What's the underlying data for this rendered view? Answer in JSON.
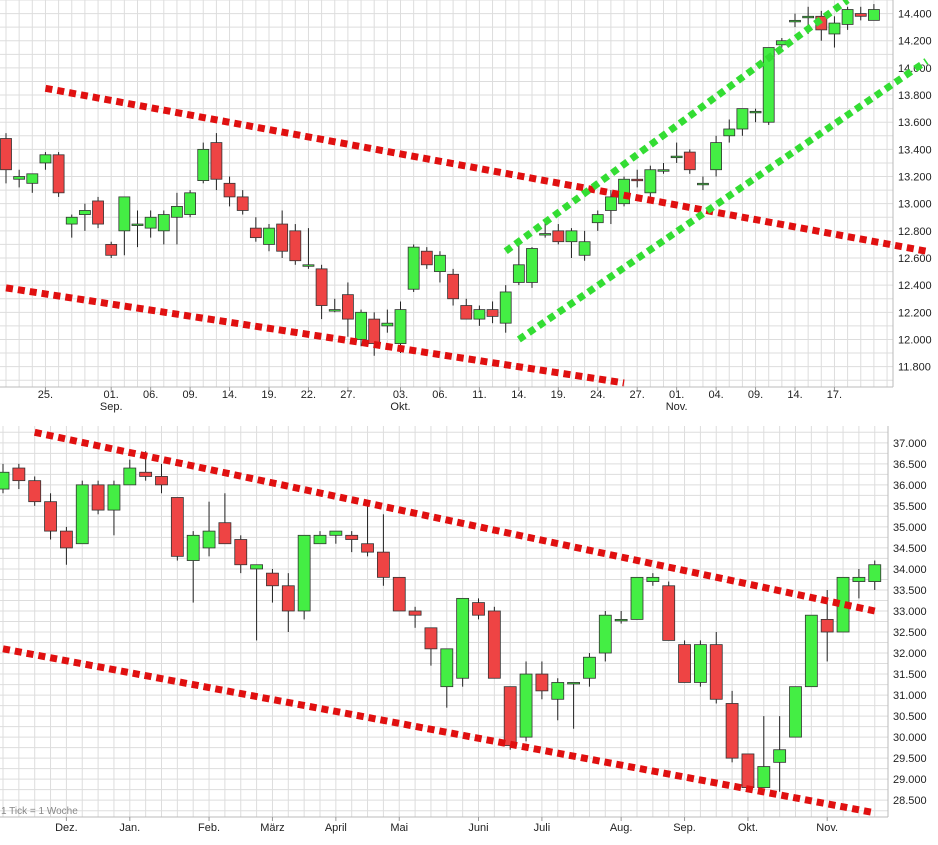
{
  "footer": {
    "tick_note": "1 Tick = 1 Woche"
  },
  "colors": {
    "up": "#44ee44",
    "down": "#ee4444",
    "grid": "#dddddd",
    "trend_red": "#e01010",
    "trend_green": "#33dd33"
  },
  "chart_data": [
    {
      "type": "candlestick",
      "period": "daily",
      "grid": true,
      "ylim": [
        11.65,
        14.5
      ],
      "y_ticks": [
        "11.800",
        "12.000",
        "12.200",
        "12.400",
        "12.600",
        "12.800",
        "13.000",
        "13.200",
        "13.400",
        "13.600",
        "13.800",
        "14.000",
        "14.200",
        "14.400"
      ],
      "x_labels": [
        {
          "day": "25.",
          "index": 3
        },
        {
          "day": "01.",
          "month": "Sep.",
          "index": 8
        },
        {
          "day": "06.",
          "index": 11
        },
        {
          "day": "09.",
          "index": 14
        },
        {
          "day": "14.",
          "index": 17
        },
        {
          "day": "19.",
          "index": 20
        },
        {
          "day": "22.",
          "index": 23
        },
        {
          "day": "27.",
          "index": 26
        },
        {
          "day": "03.",
          "month": "Okt.",
          "index": 30
        },
        {
          "day": "06.",
          "index": 33
        },
        {
          "day": "11.",
          "index": 36
        },
        {
          "day": "14.",
          "index": 39
        },
        {
          "day": "19.",
          "index": 42
        },
        {
          "day": "24.",
          "index": 45
        },
        {
          "day": "27.",
          "index": 48
        },
        {
          "day": "01.",
          "month": "Nov.",
          "index": 51
        },
        {
          "day": "04.",
          "index": 54
        },
        {
          "day": "09.",
          "index": 57
        },
        {
          "day": "14.",
          "index": 60
        },
        {
          "day": "17.",
          "index": 63
        }
      ],
      "candles": [
        [
          13.48,
          13.52,
          13.15,
          13.25
        ],
        [
          13.18,
          13.25,
          13.12,
          13.2
        ],
        [
          13.15,
          13.22,
          13.08,
          13.22
        ],
        [
          13.3,
          13.38,
          13.25,
          13.36
        ],
        [
          13.36,
          13.38,
          13.05,
          13.08
        ],
        [
          12.85,
          12.92,
          12.75,
          12.9
        ],
        [
          12.92,
          13.0,
          12.8,
          12.95
        ],
        [
          13.02,
          13.05,
          12.82,
          12.85
        ],
        [
          12.7,
          12.72,
          12.6,
          12.62
        ],
        [
          12.8,
          13.05,
          12.62,
          13.05
        ],
        [
          12.85,
          12.95,
          12.68,
          12.85
        ],
        [
          12.82,
          12.95,
          12.75,
          12.9
        ],
        [
          12.8,
          12.95,
          12.7,
          12.92
        ],
        [
          12.9,
          13.08,
          12.7,
          12.98
        ],
        [
          12.92,
          13.1,
          12.9,
          13.08
        ],
        [
          13.17,
          13.45,
          13.15,
          13.4
        ],
        [
          13.45,
          13.52,
          13.1,
          13.18
        ],
        [
          13.15,
          13.2,
          12.98,
          13.05
        ],
        [
          13.05,
          13.1,
          12.92,
          12.95
        ],
        [
          12.82,
          12.9,
          12.72,
          12.75
        ],
        [
          12.7,
          12.85,
          12.65,
          12.82
        ],
        [
          12.85,
          12.95,
          12.6,
          12.65
        ],
        [
          12.8,
          12.85,
          12.55,
          12.58
        ],
        [
          12.55,
          12.82,
          12.52,
          12.55
        ],
        [
          12.52,
          12.55,
          12.15,
          12.25
        ],
        [
          12.22,
          12.3,
          12.2,
          12.22
        ],
        [
          12.33,
          12.42,
          12.02,
          12.15
        ],
        [
          12.0,
          12.22,
          11.95,
          12.2
        ],
        [
          12.15,
          12.2,
          11.88,
          11.97
        ],
        [
          12.1,
          12.22,
          12.05,
          12.12
        ],
        [
          11.97,
          12.28,
          11.9,
          12.22
        ],
        [
          12.37,
          12.7,
          12.35,
          12.68
        ],
        [
          12.65,
          12.68,
          12.52,
          12.55
        ],
        [
          12.5,
          12.65,
          12.42,
          12.62
        ],
        [
          12.48,
          12.52,
          12.25,
          12.3
        ],
        [
          12.25,
          12.3,
          12.15,
          12.15
        ],
        [
          12.15,
          12.25,
          12.1,
          12.22
        ],
        [
          12.22,
          12.28,
          12.12,
          12.17
        ],
        [
          12.12,
          12.4,
          12.05,
          12.35
        ],
        [
          12.42,
          12.7,
          12.4,
          12.55
        ],
        [
          12.42,
          12.68,
          12.38,
          12.67
        ],
        [
          12.78,
          12.88,
          12.75,
          12.78
        ],
        [
          12.8,
          12.85,
          12.7,
          12.72
        ],
        [
          12.72,
          12.82,
          12.6,
          12.8
        ],
        [
          12.62,
          12.8,
          12.58,
          12.72
        ],
        [
          12.86,
          12.95,
          12.8,
          12.92
        ],
        [
          12.95,
          13.1,
          12.85,
          13.05
        ],
        [
          13.0,
          13.2,
          12.98,
          13.18
        ],
        [
          13.18,
          13.25,
          13.12,
          13.17
        ],
        [
          13.08,
          13.28,
          13.05,
          13.25
        ],
        [
          13.25,
          13.3,
          13.22,
          13.25
        ],
        [
          13.35,
          13.45,
          13.3,
          13.35
        ],
        [
          13.38,
          13.4,
          13.22,
          13.25
        ],
        [
          13.15,
          13.2,
          13.1,
          13.15
        ],
        [
          13.25,
          13.5,
          13.2,
          13.45
        ],
        [
          13.5,
          13.62,
          13.45,
          13.55
        ],
        [
          13.55,
          13.7,
          13.5,
          13.7
        ],
        [
          13.68,
          13.7,
          13.6,
          13.68
        ],
        [
          13.6,
          14.15,
          13.58,
          14.15
        ],
        [
          14.17,
          14.22,
          14.15,
          14.2
        ],
        [
          14.35,
          14.4,
          14.3,
          14.35
        ],
        [
          14.38,
          14.45,
          14.25,
          14.38
        ],
        [
          14.38,
          14.42,
          14.2,
          14.28
        ],
        [
          14.25,
          14.38,
          14.15,
          14.33
        ],
        [
          14.32,
          14.45,
          14.28,
          14.43
        ],
        [
          14.4,
          14.45,
          14.35,
          14.38
        ],
        [
          14.35,
          14.47,
          14.35,
          14.43
        ]
      ],
      "trendlines": [
        {
          "color": "red",
          "from": {
            "index": 3,
            "value": 13.85
          },
          "to": {
            "index": 70,
            "value": 12.65
          }
        },
        {
          "color": "red",
          "from": {
            "index": 0,
            "value": 12.38
          },
          "to": {
            "index": 47,
            "value": 11.68
          }
        },
        {
          "color": "green",
          "from": {
            "index": 38,
            "value": 12.65
          },
          "to": {
            "index": 64,
            "value": 14.5
          }
        },
        {
          "color": "green",
          "from": {
            "index": 39,
            "value": 12.0
          },
          "to": {
            "index": 70,
            "value": 14.05
          }
        }
      ]
    },
    {
      "type": "candlestick",
      "period": "weekly",
      "grid": true,
      "ylim": [
        28.1,
        37.4
      ],
      "y_ticks": [
        "28.500",
        "29.000",
        "29.500",
        "30.000",
        "30.500",
        "31.000",
        "31.500",
        "32.000",
        "32.500",
        "33.000",
        "33.500",
        "34.000",
        "34.500",
        "35.000",
        "35.500",
        "36.000",
        "36.500",
        "37.000"
      ],
      "x_labels": [
        {
          "label": "Dez.",
          "index": 4
        },
        {
          "label": "Jan.",
          "index": 8
        },
        {
          "label": "Feb.",
          "index": 13
        },
        {
          "label": "März",
          "index": 17
        },
        {
          "label": "April",
          "index": 21
        },
        {
          "label": "Mai",
          "index": 25
        },
        {
          "label": "Juni",
          "index": 30
        },
        {
          "label": "Juli",
          "index": 34
        },
        {
          "label": "Aug.",
          "index": 39
        },
        {
          "label": "Sep.",
          "index": 43
        },
        {
          "label": "Okt.",
          "index": 47
        },
        {
          "label": "Nov.",
          "index": 52
        }
      ],
      "candles": [
        [
          35.9,
          36.5,
          35.8,
          36.3
        ],
        [
          36.4,
          36.5,
          35.9,
          36.1
        ],
        [
          36.1,
          36.2,
          35.5,
          35.6
        ],
        [
          35.6,
          35.8,
          34.7,
          34.9
        ],
        [
          34.9,
          35.0,
          34.1,
          34.5
        ],
        [
          34.6,
          36.1,
          34.6,
          36.0
        ],
        [
          36.0,
          36.1,
          35.3,
          35.4
        ],
        [
          35.4,
          36.1,
          34.8,
          36.0
        ],
        [
          36.0,
          36.6,
          36.0,
          36.4
        ],
        [
          36.3,
          36.8,
          36.1,
          36.2
        ],
        [
          36.2,
          36.5,
          35.8,
          36.0
        ],
        [
          35.7,
          35.7,
          34.2,
          34.3
        ],
        [
          34.2,
          34.9,
          33.2,
          34.8
        ],
        [
          34.5,
          35.6,
          34.3,
          34.9
        ],
        [
          35.1,
          35.8,
          34.6,
          34.6
        ],
        [
          34.7,
          34.8,
          33.9,
          34.1
        ],
        [
          34.0,
          34.1,
          32.3,
          34.1
        ],
        [
          33.9,
          34.0,
          33.2,
          33.6
        ],
        [
          33.6,
          33.9,
          32.5,
          33.0
        ],
        [
          33.0,
          34.8,
          32.8,
          34.8
        ],
        [
          34.6,
          34.9,
          34.6,
          34.8
        ],
        [
          34.8,
          34.9,
          34.6,
          34.9
        ],
        [
          34.8,
          34.9,
          34.4,
          34.7
        ],
        [
          34.6,
          35.5,
          34.3,
          34.4
        ],
        [
          34.4,
          35.3,
          33.6,
          33.8
        ],
        [
          33.8,
          33.8,
          33.0,
          33.0
        ],
        [
          33.0,
          33.1,
          32.6,
          32.9
        ],
        [
          32.6,
          32.6,
          31.7,
          32.1
        ],
        [
          31.2,
          32.1,
          30.7,
          32.1
        ],
        [
          31.4,
          33.3,
          31.2,
          33.3
        ],
        [
          33.2,
          33.3,
          32.8,
          32.9
        ],
        [
          33.0,
          33.1,
          31.4,
          31.4
        ],
        [
          31.2,
          31.2,
          29.7,
          29.8
        ],
        [
          30.0,
          31.8,
          29.9,
          31.5
        ],
        [
          31.5,
          31.8,
          30.9,
          31.1
        ],
        [
          30.9,
          31.4,
          30.4,
          31.3
        ],
        [
          31.3,
          31.3,
          30.2,
          31.3
        ],
        [
          31.4,
          32.0,
          31.2,
          31.9
        ],
        [
          32.0,
          33.0,
          31.8,
          32.9
        ],
        [
          32.8,
          33.0,
          32.7,
          32.8
        ],
        [
          32.8,
          33.8,
          32.8,
          33.8
        ],
        [
          33.7,
          33.9,
          33.6,
          33.8
        ],
        [
          33.6,
          33.7,
          32.3,
          32.3
        ],
        [
          32.2,
          32.3,
          31.3,
          31.3
        ],
        [
          31.3,
          32.3,
          31.2,
          32.2
        ],
        [
          32.2,
          32.5,
          30.8,
          30.9
        ],
        [
          30.8,
          31.1,
          29.4,
          29.5
        ],
        [
          29.6,
          29.6,
          28.7,
          28.8
        ],
        [
          28.8,
          30.5,
          28.8,
          29.3
        ],
        [
          29.4,
          30.5,
          28.7,
          29.7
        ],
        [
          30.0,
          31.2,
          30.0,
          31.2
        ],
        [
          31.2,
          32.9,
          31.2,
          32.9
        ],
        [
          32.8,
          33.5,
          31.8,
          32.5
        ],
        [
          32.5,
          33.8,
          32.5,
          33.8
        ],
        [
          33.7,
          34.0,
          33.3,
          33.8
        ],
        [
          33.7,
          34.2,
          33.5,
          34.1
        ]
      ],
      "trendlines": [
        {
          "color": "red",
          "from": {
            "index": 2,
            "value": 37.25
          },
          "to": {
            "index": 55,
            "value": 33.0
          }
        },
        {
          "color": "red",
          "from": {
            "index": 0,
            "value": 32.1
          },
          "to": {
            "index": 55,
            "value": 28.2
          }
        }
      ]
    }
  ]
}
